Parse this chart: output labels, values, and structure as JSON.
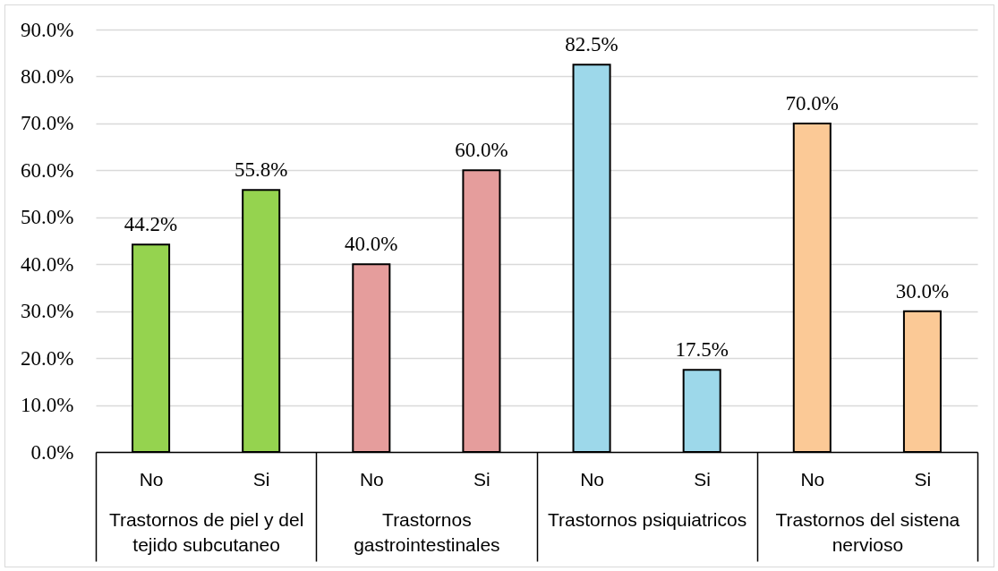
{
  "chart_data": {
    "type": "bar",
    "categories": [
      "No",
      "Si",
      "No",
      "Si",
      "No",
      "Si",
      "No",
      "Si"
    ],
    "values": [
      44.2,
      55.8,
      40.0,
      60.0,
      82.5,
      17.5,
      70.0,
      30.0
    ],
    "colors": [
      "#95d34f",
      "#95d34f",
      "#e59d9c",
      "#e59d9c",
      "#9dd8ea",
      "#9dd8ea",
      "#fbc996",
      "#fbc996"
    ],
    "value_labels": [
      "44.2%",
      "55.8%",
      "40.0%",
      "60.0%",
      "82.5%",
      "17.5%",
      "70.0%",
      "30.0%"
    ],
    "annotations": [
      "Trastornos de piel y del tejido subcutaneo",
      "Trastornos gastrointestinales",
      "Trastornos psiquiatricos",
      "Trastornos del sistena nervioso"
    ],
    "ylim": [
      0,
      90
    ],
    "yticks": [
      {
        "value": 0,
        "label": "0.0%"
      },
      {
        "value": 10,
        "label": "10.0%"
      },
      {
        "value": 20,
        "label": "20.0%"
      },
      {
        "value": 30,
        "label": "30.0%"
      },
      {
        "value": 40,
        "label": "40.0%"
      },
      {
        "value": 50,
        "label": "50.0%"
      },
      {
        "value": 60,
        "label": "60.0%"
      },
      {
        "value": 70,
        "label": "70.0%"
      },
      {
        "value": 80,
        "label": "80.0%"
      },
      {
        "value": 90,
        "label": "90.0%"
      }
    ],
    "grid": "y"
  }
}
